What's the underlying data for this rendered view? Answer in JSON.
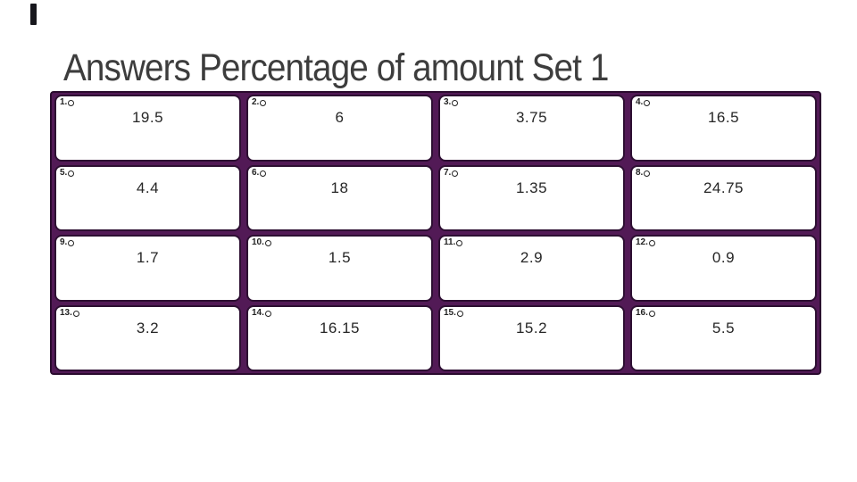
{
  "slide": {
    "title": "Answers Percentage of amount Set 1"
  },
  "answers_grid": {
    "columns": 4,
    "rows": 4,
    "cards": [
      {
        "number": "1.",
        "value": "19.5"
      },
      {
        "number": "2.",
        "value": "6"
      },
      {
        "number": "3.",
        "value": "3.75"
      },
      {
        "number": "4.",
        "value": "16.5"
      },
      {
        "number": "5.",
        "value": "4.4"
      },
      {
        "number": "6.",
        "value": "18"
      },
      {
        "number": "7.",
        "value": "1.35"
      },
      {
        "number": "8.",
        "value": "24.75"
      },
      {
        "number": "9.",
        "value": "1.7"
      },
      {
        "number": "10.",
        "value": "1.5"
      },
      {
        "number": "11.",
        "value": "2.9"
      },
      {
        "number": "12.",
        "value": "0.9"
      },
      {
        "number": "13.",
        "value": "3.2"
      },
      {
        "number": "14.",
        "value": "16.15"
      },
      {
        "number": "15.",
        "value": "15.2"
      },
      {
        "number": "16.",
        "value": "5.5"
      }
    ],
    "colors": {
      "grid_purple": "#521a56",
      "grid_outline": "#2a0b2e",
      "card_outline": "#2d0f32",
      "card_background": "#ffffff",
      "title_text": "#3d3d3d",
      "value_text": "#262626"
    }
  }
}
